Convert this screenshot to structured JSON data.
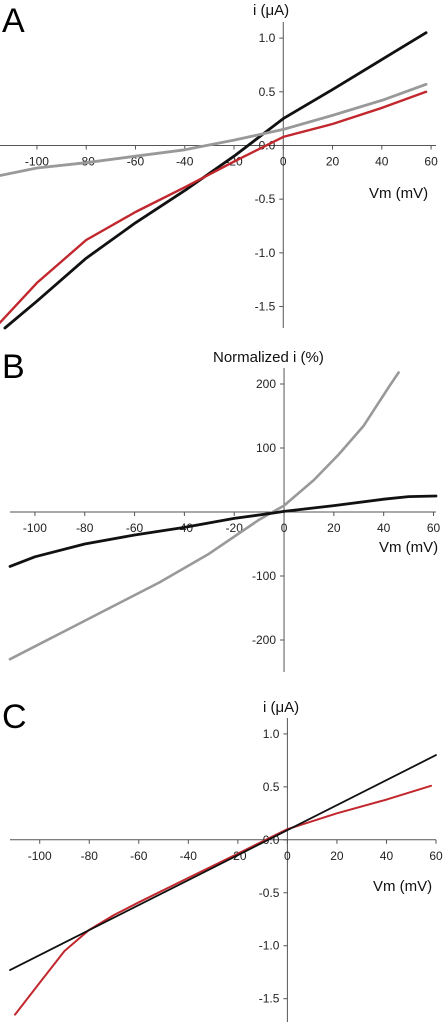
{
  "chart_data": [
    {
      "panel": "A",
      "type": "line",
      "ylabel": "i (μA)",
      "xlabel": "Vm (mV)",
      "xlim": [
        -115,
        62
      ],
      "ylim": [
        -1.7,
        1.15
      ],
      "xticks": [
        -100,
        -80,
        -60,
        -40,
        -20,
        0,
        20,
        40,
        60
      ],
      "yticks": [
        1.0,
        0.5,
        0.0,
        -0.5,
        -1.0,
        -1.5
      ],
      "ytick_labels": [
        "1.0",
        "0.5",
        "0.0",
        "-0.5",
        "-1.0",
        "-1.5"
      ],
      "xtick_labels": [
        "-100",
        "-80",
        "-60",
        "-40",
        "-20",
        "0",
        "20",
        "40",
        "60"
      ],
      "series": [
        {
          "color": "#111111",
          "width": 2.8,
          "points": [
            [
              -113,
              -1.7
            ],
            [
              -100,
              -1.45
            ],
            [
              -80,
              -1.05
            ],
            [
              -60,
              -0.72
            ],
            [
              -40,
              -0.42
            ],
            [
              -20,
              -0.1
            ],
            [
              0,
              0.25
            ],
            [
              20,
              0.52
            ],
            [
              40,
              0.8
            ],
            [
              58,
              1.05
            ]
          ]
        },
        {
          "color": "#c1272d",
          "width": 2.4,
          "points": [
            [
              -115,
              -1.65
            ],
            [
              -100,
              -1.28
            ],
            [
              -80,
              -0.88
            ],
            [
              -60,
              -0.62
            ],
            [
              -40,
              -0.39
            ],
            [
              -20,
              -0.15
            ],
            [
              0,
              0.08
            ],
            [
              20,
              0.2
            ],
            [
              40,
              0.35
            ],
            [
              58,
              0.5
            ]
          ]
        },
        {
          "color": "#999999",
          "width": 2.8,
          "points": [
            [
              -115,
              -0.28
            ],
            [
              -100,
              -0.21
            ],
            [
              -80,
              -0.16
            ],
            [
              -60,
              -0.1
            ],
            [
              -40,
              -0.04
            ],
            [
              -20,
              0.05
            ],
            [
              0,
              0.15
            ],
            [
              20,
              0.28
            ],
            [
              40,
              0.42
            ],
            [
              58,
              0.57
            ]
          ]
        }
      ]
    },
    {
      "panel": "B",
      "type": "line",
      "ylabel": "Normalized i (%)",
      "xlabel": "Vm (mV)",
      "xlim": [
        -110,
        61
      ],
      "ylim": [
        -250,
        225
      ],
      "xticks": [
        -100,
        -80,
        -60,
        -40,
        -20,
        0,
        20,
        40,
        60
      ],
      "yticks": [
        200,
        100,
        -100,
        -200
      ],
      "ytick_labels": [
        "200",
        "100",
        "-100",
        "-200"
      ],
      "xtick_labels": [
        "-100",
        "-80",
        "-60",
        "-40",
        "-20",
        "0",
        "20",
        "40",
        "60"
      ],
      "series": [
        {
          "color": "#999999",
          "width": 2.6,
          "points": [
            [
              -110,
              -230
            ],
            [
              -90,
              -190
            ],
            [
              -70,
              -150
            ],
            [
              -50,
              -110
            ],
            [
              -30,
              -65
            ],
            [
              -10,
              -12
            ],
            [
              0,
              10
            ],
            [
              12,
              50
            ],
            [
              22,
              90
            ],
            [
              32,
              135
            ],
            [
              42,
              195
            ],
            [
              46,
              218
            ]
          ]
        },
        {
          "color": "#111111",
          "width": 2.8,
          "points": [
            [
              -110,
              -85
            ],
            [
              -100,
              -70
            ],
            [
              -80,
              -50
            ],
            [
              -60,
              -36
            ],
            [
              -40,
              -24
            ],
            [
              -20,
              -10
            ],
            [
              -5,
              -2
            ],
            [
              0,
              1
            ],
            [
              20,
              10
            ],
            [
              40,
              20
            ],
            [
              50,
              24
            ],
            [
              61,
              25
            ]
          ]
        }
      ]
    },
    {
      "panel": "C",
      "type": "line",
      "ylabel": "i (μA)",
      "xlabel": "Vm (mV)",
      "xlim": [
        -112,
        60
      ],
      "ylim": [
        -1.72,
        1.15
      ],
      "xticks": [
        -100,
        -80,
        -60,
        -40,
        -20,
        0,
        20,
        40,
        60
      ],
      "yticks": [
        1.0,
        0.5,
        0.0,
        -0.5,
        -1.0,
        -1.5
      ],
      "ytick_labels": [
        "1.0",
        "0.5",
        "0.0",
        "-0.5",
        "-1.0",
        "-1.5"
      ],
      "xtick_labels": [
        "-100",
        "-80",
        "-60",
        "-40",
        "-20",
        "0",
        "20",
        "40",
        "60"
      ],
      "series": [
        {
          "color": "#c1272d",
          "width": 2.0,
          "points": [
            [
              -110,
              -1.65
            ],
            [
              -100,
              -1.35
            ],
            [
              -90,
              -1.05
            ],
            [
              -80,
              -0.85
            ],
            [
              -70,
              -0.71
            ],
            [
              -60,
              -0.59
            ],
            [
              -40,
              -0.36
            ],
            [
              -20,
              -0.13
            ],
            [
              0,
              0.1
            ],
            [
              20,
              0.25
            ],
            [
              40,
              0.38
            ],
            [
              58,
              0.51
            ]
          ]
        },
        {
          "color": "#111111",
          "width": 1.8,
          "points": [
            [
              -112,
              -1.23
            ],
            [
              60,
              0.8
            ]
          ]
        }
      ]
    }
  ],
  "panels": [
    {
      "letter": "A",
      "ylabel": "i (μA)",
      "xlabel": "Vm (mV)"
    },
    {
      "letter": "B",
      "ylabel": "Normalized i (%)",
      "xlabel": "Vm (mV)"
    },
    {
      "letter": "C",
      "ylabel": "i (μA)",
      "xlabel": "Vm (mV)"
    }
  ]
}
